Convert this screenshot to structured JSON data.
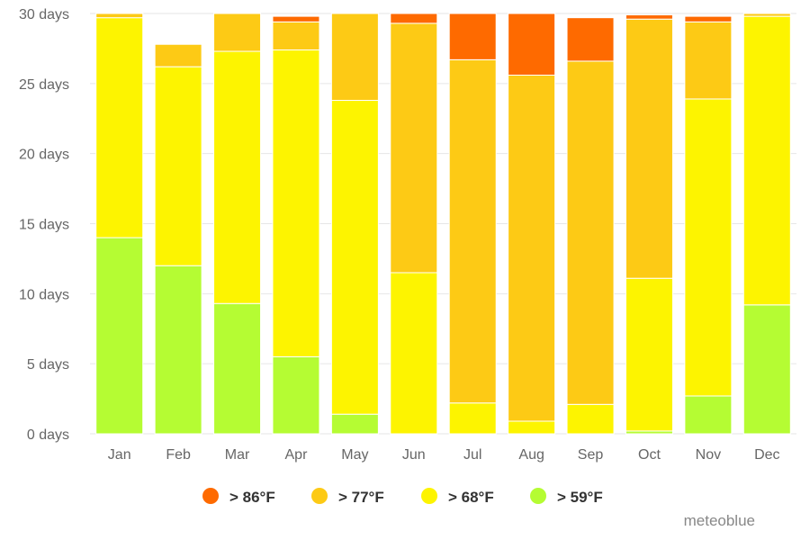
{
  "chart_data": {
    "type": "bar",
    "stacked": true,
    "categories": [
      "Jan",
      "Feb",
      "Mar",
      "Apr",
      "May",
      "Jun",
      "Jul",
      "Aug",
      "Sep",
      "Oct",
      "Nov",
      "Dec"
    ],
    "ylim": [
      0,
      30
    ],
    "yticks": [
      0,
      5,
      10,
      15,
      20,
      25,
      30
    ],
    "ytick_suffix": " days",
    "grid": true,
    "legend_position": "bottom",
    "series": [
      {
        "name": "> 59°F",
        "color": "#b5fc33",
        "values": [
          14.0,
          12.0,
          9.3,
          5.5,
          1.4,
          0.0,
          0.0,
          0.0,
          0.0,
          0.2,
          2.7,
          9.2
        ]
      },
      {
        "name": "> 68°F",
        "color": "#fdf400",
        "values": [
          15.7,
          14.2,
          18.0,
          21.9,
          22.4,
          11.5,
          2.2,
          0.9,
          2.1,
          10.9,
          21.2,
          20.6
        ]
      },
      {
        "name": "> 77°F",
        "color": "#fdca15",
        "values": [
          0.3,
          1.6,
          2.7,
          2.0,
          6.2,
          17.8,
          24.5,
          24.7,
          24.5,
          18.5,
          5.5,
          0.2
        ]
      },
      {
        "name": "> 86°F",
        "color": "#fe6a00",
        "values": [
          0.0,
          0.0,
          0.0,
          0.4,
          0.0,
          0.7,
          3.3,
          4.4,
          3.1,
          0.3,
          0.4,
          0.0
        ]
      }
    ],
    "legend_order": [
      "> 86°F",
      "> 77°F",
      "> 68°F",
      "> 59°F"
    ]
  },
  "credit": "meteoblue"
}
